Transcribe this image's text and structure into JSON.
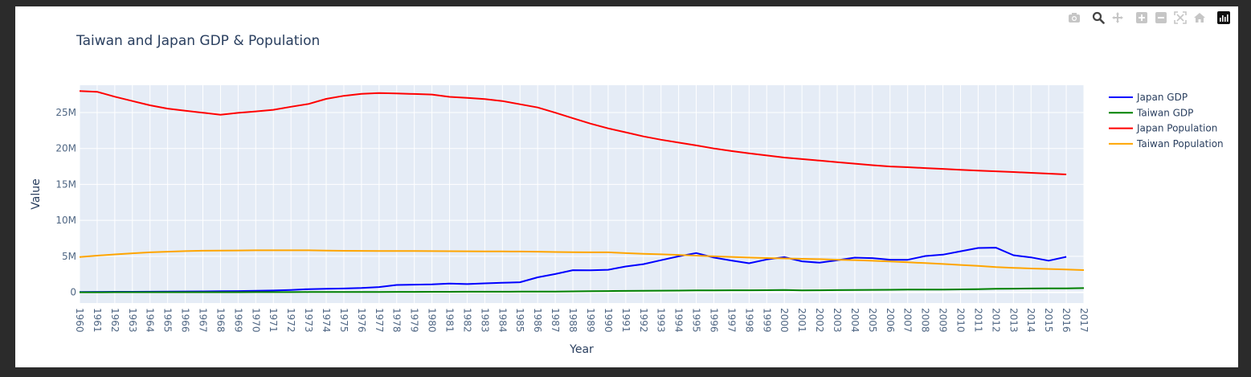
{
  "modebar": {
    "buttons": [
      {
        "icon": "camera-icon"
      },
      {
        "icon": "zoom-icon"
      },
      {
        "icon": "pan-icon"
      },
      {
        "icon": "zoom-in-icon"
      },
      {
        "icon": "zoom-out-icon"
      },
      {
        "icon": "autoscale-icon"
      },
      {
        "icon": "reset-axes-icon"
      },
      {
        "icon": "plotly-logo-icon"
      }
    ]
  },
  "chart_data": {
    "type": "line",
    "title": "Taiwan and Japan GDP & Population",
    "xlabel": "Year",
    "ylabel": "Value",
    "xlim": [
      1960,
      2017
    ],
    "ylim": [
      -1500000,
      28800000
    ],
    "grid": true,
    "legend_position": "right",
    "x_ticks": [
      "1960",
      "1961",
      "1962",
      "1963",
      "1964",
      "1965",
      "1966",
      "1967",
      "1968",
      "1969",
      "1970",
      "1971",
      "1972",
      "1973",
      "1974",
      "1975",
      "1976",
      "1977",
      "1978",
      "1979",
      "1980",
      "1981",
      "1982",
      "1983",
      "1984",
      "1985",
      "1986",
      "1987",
      "1988",
      "1989",
      "1990",
      "1991",
      "1992",
      "1993",
      "1994",
      "1995",
      "1996",
      "1997",
      "1998",
      "1999",
      "2000",
      "2001",
      "2002",
      "2003",
      "2004",
      "2005",
      "2006",
      "2007",
      "2008",
      "2009",
      "2010",
      "2011",
      "2012",
      "2013",
      "2014",
      "2015",
      "2016",
      "2017"
    ],
    "y_ticks": [
      {
        "value": 0,
        "label": "0"
      },
      {
        "value": 5000000,
        "label": "5M"
      },
      {
        "value": 10000000,
        "label": "10M"
      },
      {
        "value": 15000000,
        "label": "15M"
      },
      {
        "value": 20000000,
        "label": "20M"
      },
      {
        "value": 25000000,
        "label": "25M"
      }
    ],
    "series": [
      {
        "name": "Japan GDP",
        "color": "#0000ff",
        "x": [
          1960,
          1961,
          1962,
          1963,
          1964,
          1965,
          1966,
          1967,
          1968,
          1969,
          1970,
          1971,
          1972,
          1973,
          1974,
          1975,
          1976,
          1977,
          1978,
          1979,
          1980,
          1981,
          1982,
          1983,
          1984,
          1985,
          1986,
          1987,
          1988,
          1989,
          1990,
          1991,
          1992,
          1993,
          1994,
          1995,
          1996,
          1997,
          1998,
          1999,
          2000,
          2001,
          2002,
          2003,
          2004,
          2005,
          2006,
          2007,
          2008,
          2009,
          2010,
          2011,
          2012,
          2013,
          2014,
          2015,
          2016
        ],
        "y": [
          44000,
          54000,
          61000,
          70000,
          82000,
          91000,
          106000,
          124000,
          147000,
          171000,
          212000,
          240000,
          318000,
          432000,
          480000,
          521000,
          586000,
          722000,
          1014000,
          1055000,
          1105000,
          1218000,
          1134000,
          1243000,
          1318000,
          1399000,
          2078000,
          2532000,
          3072000,
          3054000,
          3133000,
          3585000,
          3909000,
          4454000,
          4999000,
          5449000,
          4833000,
          4415000,
          4033000,
          4562000,
          4888000,
          4303000,
          4115000,
          4445000,
          4815000,
          4755000,
          4530000,
          4515000,
          5037000,
          5231000,
          5700000,
          6157000,
          6203000,
          5156000,
          4850000,
          4389000,
          4927000
        ]
      },
      {
        "name": "Taiwan GDP",
        "color": "#008000",
        "x": [
          1960,
          1961,
          1962,
          1963,
          1964,
          1965,
          1966,
          1967,
          1968,
          1969,
          1970,
          1971,
          1972,
          1973,
          1974,
          1975,
          1976,
          1977,
          1978,
          1979,
          1980,
          1981,
          1982,
          1983,
          1984,
          1985,
          1986,
          1987,
          1988,
          1989,
          1990,
          1991,
          1992,
          1993,
          1994,
          1995,
          1996,
          1997,
          1998,
          1999,
          2000,
          2001,
          2002,
          2003,
          2004,
          2005,
          2006,
          2007,
          2008,
          2009,
          2010,
          2011,
          2012,
          2013,
          2014,
          2015,
          2016,
          2017
        ],
        "y": [
          2000,
          3000,
          4000,
          5000,
          6000,
          7000,
          8000,
          9000,
          10000,
          12000,
          15000,
          18000,
          22000,
          28000,
          32000,
          35000,
          40000,
          45000,
          52000,
          58000,
          62000,
          68000,
          72000,
          75000,
          80000,
          85000,
          90000,
          100000,
          120000,
          140000,
          165000,
          185000,
          205000,
          220000,
          235000,
          250000,
          262000,
          275000,
          282000,
          290000,
          310000,
          270000,
          280000,
          300000,
          315000,
          330000,
          350000,
          365000,
          375000,
          380000,
          400000,
          420000,
          480000,
          500000,
          520000,
          535000,
          545000,
          575000
        ]
      },
      {
        "name": "Japan Population",
        "color": "#ff0000",
        "x": [
          1960,
          1961,
          1962,
          1963,
          1964,
          1965,
          1966,
          1967,
          1968,
          1969,
          1970,
          1971,
          1972,
          1973,
          1974,
          1975,
          1976,
          1977,
          1978,
          1979,
          1980,
          1981,
          1982,
          1983,
          1984,
          1985,
          1986,
          1987,
          1988,
          1989,
          1990,
          1991,
          1992,
          1993,
          1994,
          1995,
          1996,
          1997,
          1998,
          1999,
          2000,
          2001,
          2002,
          2003,
          2004,
          2005,
          2006,
          2007,
          2008,
          2009,
          2010,
          2011,
          2012,
          2013,
          2014,
          2015,
          2016
        ],
        "y": [
          28000000,
          27880000,
          27200000,
          26600000,
          26000000,
          25550000,
          25250000,
          24980000,
          24680000,
          24950000,
          25150000,
          25380000,
          25800000,
          26200000,
          26900000,
          27320000,
          27600000,
          27700000,
          27650000,
          27580000,
          27500000,
          27180000,
          27030000,
          26880000,
          26600000,
          26150000,
          25700000,
          24980000,
          24200000,
          23460000,
          22800000,
          22250000,
          21680000,
          21220000,
          20820000,
          20420000,
          20000000,
          19640000,
          19330000,
          19030000,
          18740000,
          18530000,
          18310000,
          18100000,
          17890000,
          17680000,
          17500000,
          17390000,
          17270000,
          17160000,
          17040000,
          16930000,
          16820000,
          16720000,
          16610000,
          16500000,
          16390000
        ]
      },
      {
        "name": "Taiwan Population",
        "color": "#ffa500",
        "x": [
          1960,
          1961,
          1962,
          1963,
          1964,
          1965,
          1966,
          1967,
          1968,
          1969,
          1970,
          1971,
          1972,
          1973,
          1974,
          1975,
          1976,
          1977,
          1978,
          1979,
          1980,
          1981,
          1982,
          1983,
          1984,
          1985,
          1986,
          1987,
          1988,
          1989,
          1990,
          1991,
          1992,
          1993,
          1994,
          1995,
          1996,
          1997,
          1998,
          1999,
          2000,
          2001,
          2002,
          2003,
          2004,
          2005,
          2006,
          2007,
          2008,
          2009,
          2010,
          2011,
          2012,
          2013,
          2014,
          2015,
          2016,
          2017
        ],
        "y": [
          4900000,
          5100000,
          5260000,
          5420000,
          5560000,
          5650000,
          5720000,
          5780000,
          5800000,
          5810000,
          5830000,
          5840000,
          5840000,
          5830000,
          5790000,
          5770000,
          5760000,
          5750000,
          5740000,
          5730000,
          5720000,
          5710000,
          5700000,
          5690000,
          5680000,
          5670000,
          5640000,
          5600000,
          5570000,
          5550000,
          5550000,
          5440000,
          5350000,
          5270000,
          5200000,
          5100000,
          5000000,
          4920000,
          4830000,
          4760000,
          4700000,
          4650000,
          4600000,
          4530000,
          4470000,
          4380000,
          4280000,
          4170000,
          4060000,
          3930000,
          3800000,
          3660000,
          3500000,
          3400000,
          3310000,
          3240000,
          3170000,
          3080000
        ]
      }
    ]
  }
}
